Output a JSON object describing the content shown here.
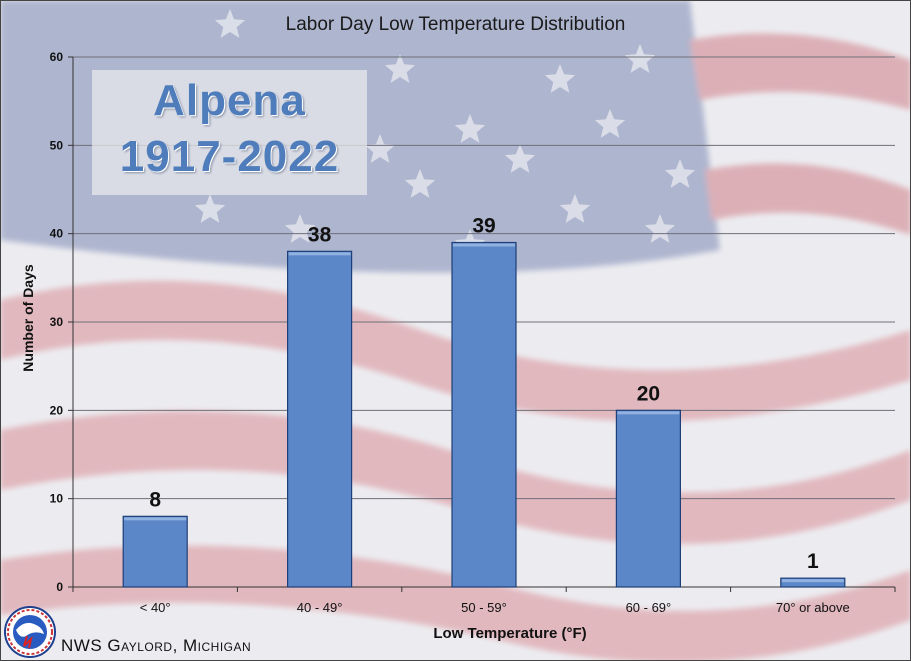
{
  "chart_data": {
    "type": "bar",
    "title": "Labor Day Low Temperature Distribution",
    "xlabel": "Low Temperature (°F)",
    "ylabel": "Number of Days",
    "categories": [
      "< 40°",
      "40 - 49°",
      "50 - 59°",
      "60 - 69°",
      "70° or above"
    ],
    "values": [
      8,
      38,
      39,
      20,
      1
    ],
    "data_labels": [
      "8",
      "38",
      "39",
      "20",
      "1"
    ],
    "ylim": [
      0,
      60
    ],
    "yticks": [
      0,
      10,
      20,
      30,
      40,
      50,
      60
    ],
    "grid": "horizontal",
    "legend": "none",
    "bar_color": "#5b87c9"
  },
  "location": {
    "name": "Alpena",
    "period": "1917-2022"
  },
  "footer": {
    "credit": "NWS Gaylord, Michigan"
  },
  "colors": {
    "flag_red": "#c44a52",
    "flag_blue": "#3c4f86",
    "label_blue": "#4f7dbb"
  }
}
